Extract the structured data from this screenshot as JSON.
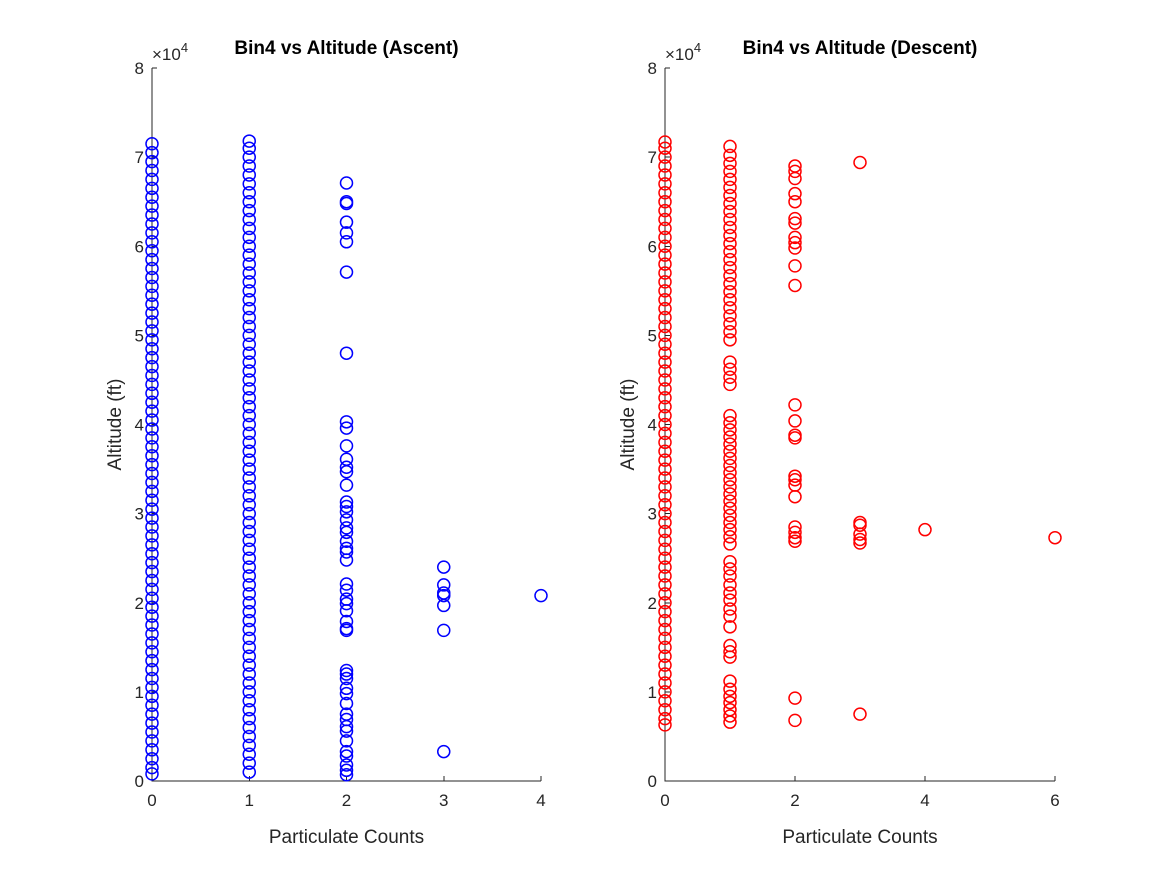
{
  "chart_data": [
    {
      "type": "scatter",
      "title": "Bin4 vs Altitude (Ascent)",
      "xlabel": "Particulate Counts",
      "ylabel": "Altitude (ft)",
      "xlim": [
        0,
        4
      ],
      "ylim": [
        0,
        80000
      ],
      "xticks": [
        "0",
        "1",
        "2",
        "3",
        "4"
      ],
      "yticks": [
        "0",
        "1",
        "2",
        "3",
        "4",
        "5",
        "6",
        "7",
        "8"
      ],
      "y_exponent_label": "×10",
      "y_exponent_power": "4",
      "marker": "open-circle",
      "color": "#0000ff",
      "grid": false,
      "series": [
        {
          "x": 0,
          "y": [
            800,
            1500,
            2500,
            3500,
            4500,
            5500,
            6500,
            7500,
            8500,
            9500,
            10500,
            11500,
            12500,
            13500,
            14500,
            15500,
            16500,
            17500,
            18500,
            19500,
            20500,
            21500,
            22500,
            23500,
            24500,
            25500,
            26500,
            27500,
            28500,
            29500,
            30500,
            31500,
            32500,
            33500,
            34500,
            35500,
            36500,
            37500,
            38500,
            39500,
            40500,
            41500,
            42500,
            43500,
            44500,
            45500,
            46500,
            47500,
            48500,
            49500,
            50500,
            51500,
            52500,
            53500,
            54500,
            55500,
            56500,
            57500,
            58500,
            59500,
            60500,
            61500,
            62500,
            63500,
            64500,
            65500,
            66500,
            67500,
            68500,
            69500,
            70500,
            71500
          ]
        },
        {
          "x": 1,
          "y": [
            1000,
            2000,
            3000,
            4000,
            5000,
            6000,
            7000,
            8000,
            9000,
            10000,
            11000,
            12000,
            13000,
            14000,
            15000,
            16000,
            17000,
            18000,
            19000,
            20000,
            21000,
            22000,
            23000,
            24000,
            25000,
            26000,
            27000,
            28000,
            29000,
            30000,
            31000,
            32000,
            33000,
            34000,
            35000,
            36000,
            37000,
            38000,
            39000,
            40000,
            41000,
            42000,
            43000,
            44000,
            45000,
            46000,
            47000,
            48000,
            49000,
            50000,
            51000,
            52000,
            53000,
            54000,
            55000,
            56000,
            57000,
            58000,
            59000,
            60000,
            61000,
            62000,
            63000,
            64000,
            65000,
            66000,
            67000,
            68000,
            69000,
            70000,
            71000,
            71800
          ]
        },
        {
          "x": 2,
          "y": [
            67100,
            65000,
            64800,
            62700,
            61500,
            60500,
            57100,
            48000,
            40300,
            39600,
            37600,
            36100,
            35200,
            34700,
            33200,
            31300,
            30800,
            30200,
            29300,
            28400,
            27900,
            26900,
            26100,
            25700,
            24800,
            22100,
            21400,
            20400,
            19900,
            19100,
            17900,
            17100,
            16900,
            12400,
            12000,
            11500,
            10400,
            9800,
            8700,
            7500,
            6900,
            6100,
            5600,
            4500,
            3300,
            2800,
            1800,
            1200,
            700
          ]
        },
        {
          "x": 3,
          "y": [
            24000,
            22000,
            21100,
            20800,
            19700,
            16900,
            3300
          ]
        },
        {
          "x": 4,
          "y": [
            20800
          ]
        }
      ]
    },
    {
      "type": "scatter",
      "title": "Bin4 vs Altitude (Descent)",
      "xlabel": "Particulate Counts",
      "ylabel": "Altitude (ft)",
      "xlim": [
        0,
        6
      ],
      "ylim": [
        0,
        80000
      ],
      "xticks": [
        "0",
        "2",
        "4",
        "6"
      ],
      "yticks": [
        "0",
        "1",
        "2",
        "3",
        "4",
        "5",
        "6",
        "7",
        "8"
      ],
      "y_exponent_label": "×10",
      "y_exponent_power": "4",
      "marker": "open-circle",
      "color": "#ff0000",
      "grid": false,
      "series": [
        {
          "x": 0,
          "y": [
            6300,
            7000,
            8000,
            9000,
            10000,
            11000,
            12000,
            13000,
            14000,
            15000,
            16000,
            17000,
            18000,
            19000,
            20000,
            21000,
            22000,
            23000,
            24000,
            25000,
            26000,
            27000,
            28000,
            29000,
            30000,
            31000,
            32000,
            33000,
            34000,
            35000,
            36000,
            37000,
            38000,
            39000,
            40000,
            41000,
            42000,
            43000,
            44000,
            45000,
            46000,
            47000,
            48000,
            49000,
            50000,
            51000,
            52000,
            53000,
            54000,
            55000,
            56000,
            57000,
            58000,
            59000,
            60000,
            61000,
            62000,
            63000,
            64000,
            65000,
            66000,
            67000,
            68000,
            69000,
            70000,
            71000,
            71700
          ]
        },
        {
          "x": 1,
          "y": [
            6600,
            7300,
            8000,
            8800,
            9500,
            10300,
            11200,
            13900,
            14500,
            15200,
            17300,
            18500,
            19300,
            20300,
            21100,
            22000,
            23000,
            23800,
            24600,
            26600,
            27400,
            28200,
            29000,
            29800,
            30600,
            31400,
            32200,
            33000,
            33800,
            34600,
            35400,
            36200,
            37000,
            37800,
            38600,
            39400,
            40200,
            41000,
            44500,
            45300,
            46200,
            47000,
            49500,
            50400,
            51300,
            52200,
            53100,
            54000,
            54900,
            55800,
            56700,
            57600,
            58500,
            59400,
            60300,
            61200,
            62100,
            63000,
            63900,
            64800,
            65700,
            66600,
            67500,
            68400,
            69300,
            70200,
            71200
          ]
        },
        {
          "x": 2,
          "y": [
            69000,
            68400,
            67600,
            65900,
            65000,
            63100,
            62600,
            61000,
            60400,
            59800,
            57800,
            55600,
            42200,
            40400,
            38800,
            38500,
            34200,
            33800,
            33200,
            31900,
            28500,
            27900,
            27300,
            26900,
            9300,
            6800
          ]
        },
        {
          "x": 3,
          "y": [
            69400,
            29000,
            28700,
            27700,
            27100,
            26700,
            7500
          ]
        },
        {
          "x": 4,
          "y": [
            28200
          ]
        },
        {
          "x": 6,
          "y": [
            27300
          ]
        }
      ]
    }
  ]
}
